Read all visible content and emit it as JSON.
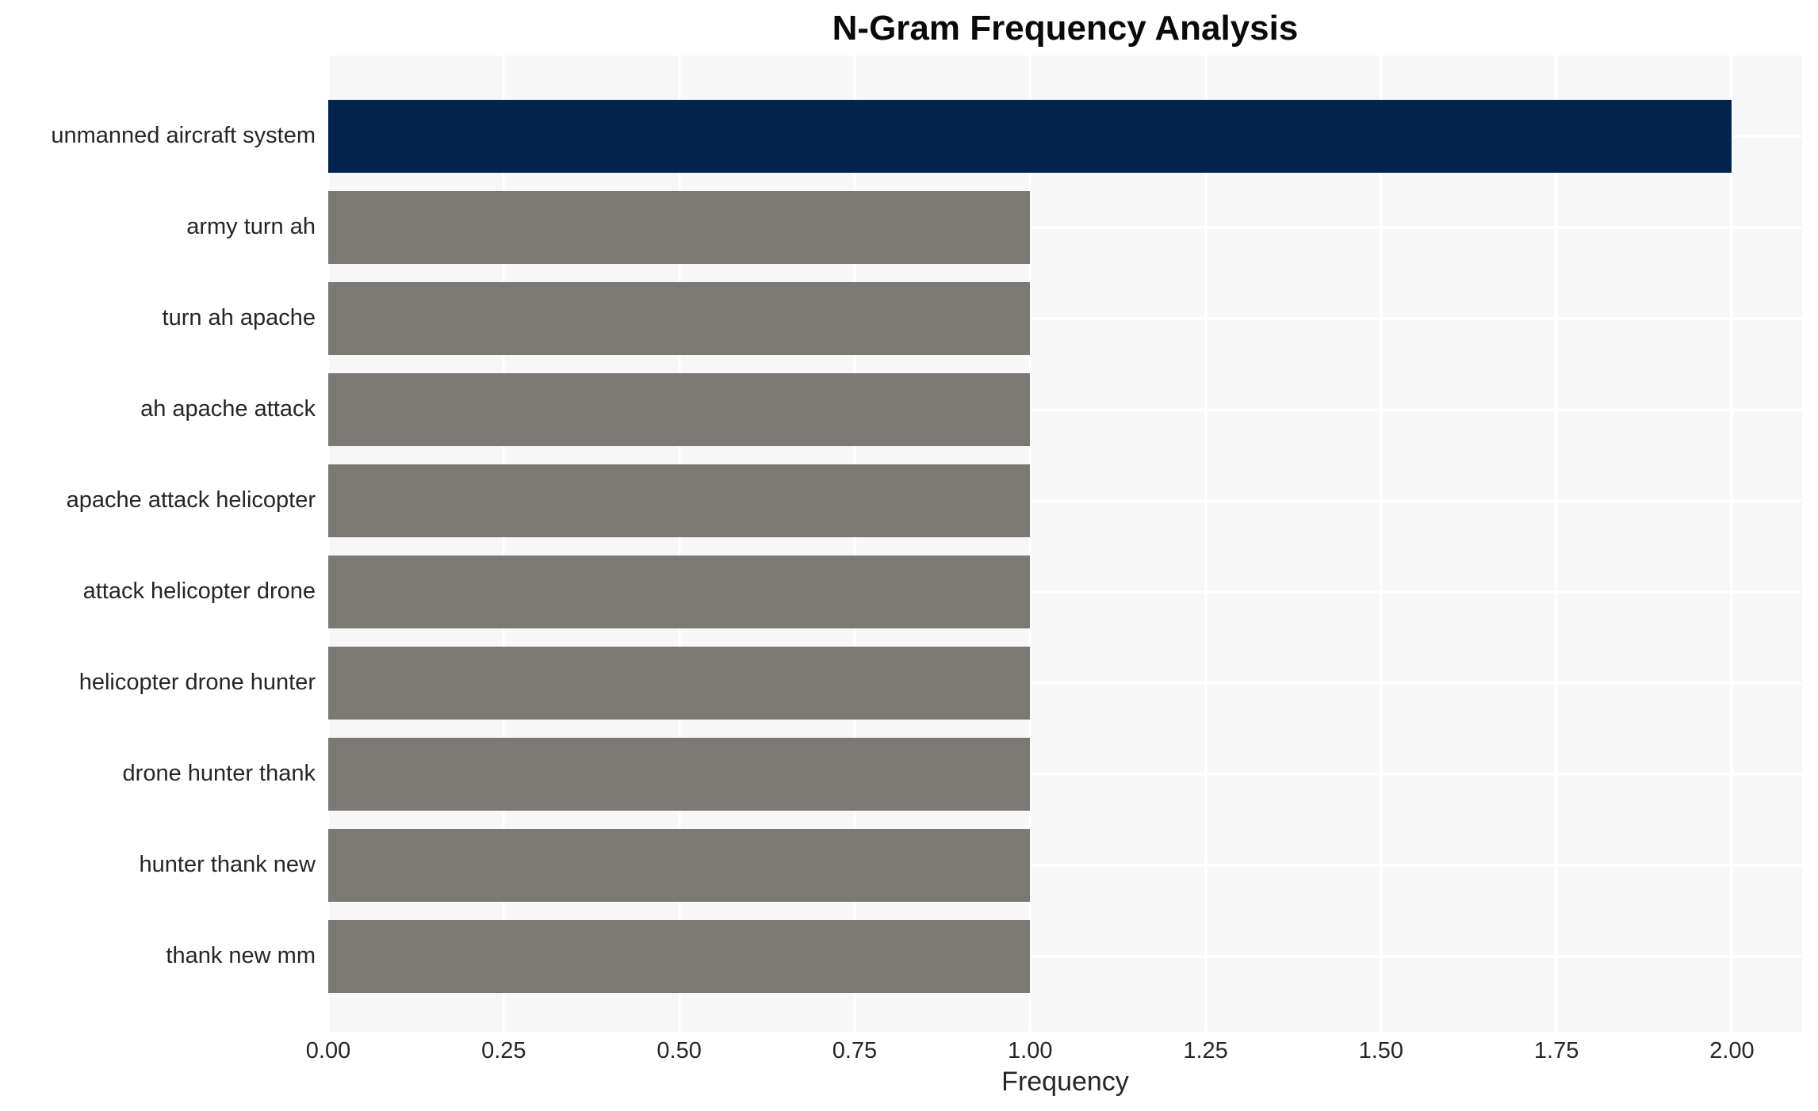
{
  "chart_data": {
    "type": "bar",
    "orientation": "horizontal",
    "title": "N-Gram Frequency Analysis",
    "xlabel": "Frequency",
    "ylabel": "",
    "categories": [
      "unmanned aircraft system",
      "army turn ah",
      "turn ah apache",
      "ah apache attack",
      "apache attack helicopter",
      "attack helicopter drone",
      "helicopter drone hunter",
      "drone hunter thank",
      "hunter thank new",
      "thank new mm"
    ],
    "values": [
      2.0,
      1.0,
      1.0,
      1.0,
      1.0,
      1.0,
      1.0,
      1.0,
      1.0,
      1.0
    ],
    "bar_colors": [
      "#02234e",
      "#7a7974",
      "#7a7974",
      "#7a7974",
      "#7a7974",
      "#7a7974",
      "#7a7974",
      "#7a7974",
      "#7a7974",
      "#7a7974"
    ],
    "xlim": [
      0,
      2.1
    ],
    "xticks": [
      0.0,
      0.25,
      0.5,
      0.75,
      1.0,
      1.25,
      1.5,
      1.75,
      2.0
    ],
    "xtick_labels": [
      "0.00",
      "0.25",
      "0.50",
      "0.75",
      "1.00",
      "1.25",
      "1.50",
      "1.75",
      "2.00"
    ],
    "grid": true,
    "legend_visible": false,
    "colors": {
      "highlight_bar": "#02234e",
      "default_bar": "#7a7974",
      "plot_background": "#f7f7f7",
      "gridline": "#ffffff",
      "text": "#262626",
      "title_text": "#0a0a0a",
      "figure_background": "#ffffff"
    }
  }
}
